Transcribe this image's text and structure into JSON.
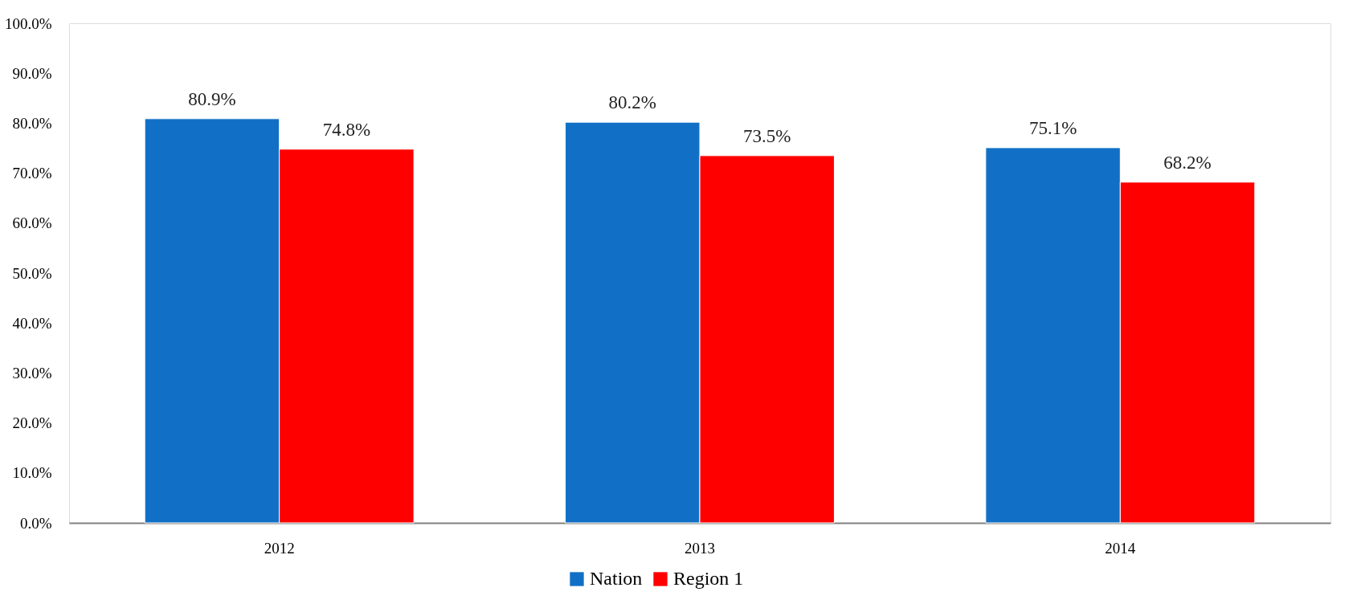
{
  "chart_data": {
    "type": "bar",
    "categories": [
      "2012",
      "2013",
      "2014"
    ],
    "series": [
      {
        "name": "Nation",
        "color": "#1170c6",
        "values": [
          80.9,
          80.2,
          75.1
        ],
        "value_labels": [
          "80.9%",
          "80.2%",
          "75.1%"
        ]
      },
      {
        "name": "Region 1",
        "color": "#ff0000",
        "values": [
          74.8,
          73.5,
          68.2
        ],
        "value_labels": [
          "74.8%",
          "73.5%",
          "68.2%"
        ]
      }
    ],
    "ylim": [
      0,
      100
    ],
    "yticks": [
      {
        "value": 0,
        "label": "0.0%"
      },
      {
        "value": 10,
        "label": "10.0%"
      },
      {
        "value": 20,
        "label": "20.0%"
      },
      {
        "value": 30,
        "label": "30.0%"
      },
      {
        "value": 40,
        "label": "40.0%"
      },
      {
        "value": 50,
        "label": "50.0%"
      },
      {
        "value": 60,
        "label": "60.0%"
      },
      {
        "value": 70,
        "label": "70.0%"
      },
      {
        "value": 80,
        "label": "80.0%"
      },
      {
        "value": 90,
        "label": "90.0%"
      },
      {
        "value": 100,
        "label": "100.0%"
      }
    ],
    "legend": "bottom",
    "grid": false
  }
}
